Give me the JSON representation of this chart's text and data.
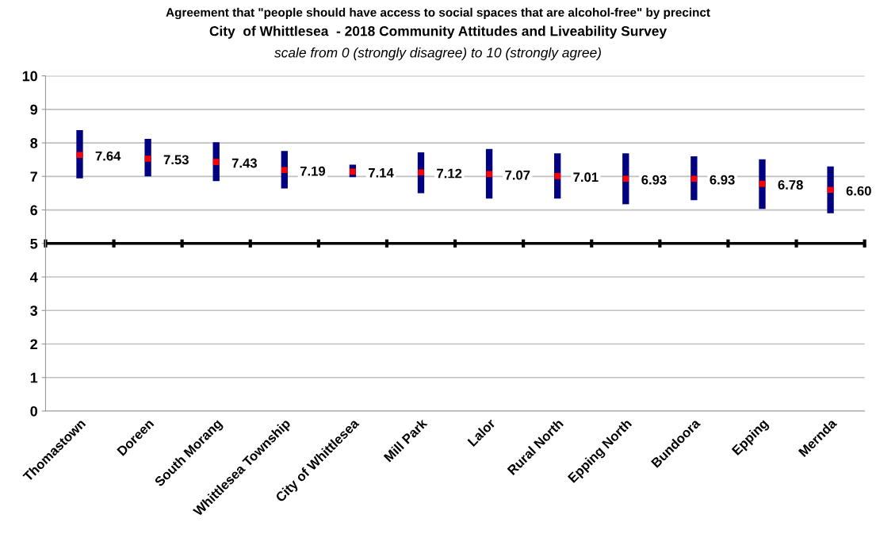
{
  "chart_data": {
    "type": "scatter",
    "title": "Agreement that \"people should have access to social spaces that are alcohol-free\" by precinct",
    "subtitle": "City  of Whittlesea  - 2018 Community Attitudes and Liveability Survey",
    "annotations": [
      "scale from 0 (strongly disagree) to 10 (strongly agree)"
    ],
    "categories": [
      "Thomastown",
      "Doreen",
      "South Morang",
      "Whittlesea Township",
      "City of Whittlesea",
      "Mill Park",
      "Lalor",
      "Rural North",
      "Epping North",
      "Bundoora",
      "Epping",
      "Mernda"
    ],
    "values": [
      7.64,
      7.53,
      7.43,
      7.19,
      7.14,
      7.12,
      7.07,
      7.01,
      6.93,
      6.93,
      6.78,
      6.6
    ],
    "errors": [
      [
        6.94,
        8.38
      ],
      [
        7.0,
        8.12
      ],
      [
        6.86,
        8.02
      ],
      [
        6.64,
        7.76
      ],
      [
        6.98,
        7.35
      ],
      [
        6.5,
        7.72
      ],
      [
        6.34,
        7.82
      ],
      [
        6.34,
        7.69
      ],
      [
        6.17,
        7.69
      ],
      [
        6.29,
        7.6
      ],
      [
        6.03,
        7.51
      ],
      [
        5.9,
        7.3
      ]
    ],
    "color": "#ff0000",
    "marker": "square",
    "value_labels": [
      "7.64",
      "7.53",
      "7.43",
      "7.19",
      "7.14",
      "7.12",
      "7.07",
      "7.01",
      "6.93",
      "6.93",
      "6.78",
      "6.60"
    ],
    "ylim": [
      0,
      10
    ],
    "yticks": [
      0,
      1,
      2,
      3,
      4,
      5,
      6,
      7,
      8,
      9,
      10
    ],
    "grid": "y",
    "ref_lines": [
      {
        "axis": "y",
        "value": 5,
        "color": "#000000"
      }
    ]
  }
}
